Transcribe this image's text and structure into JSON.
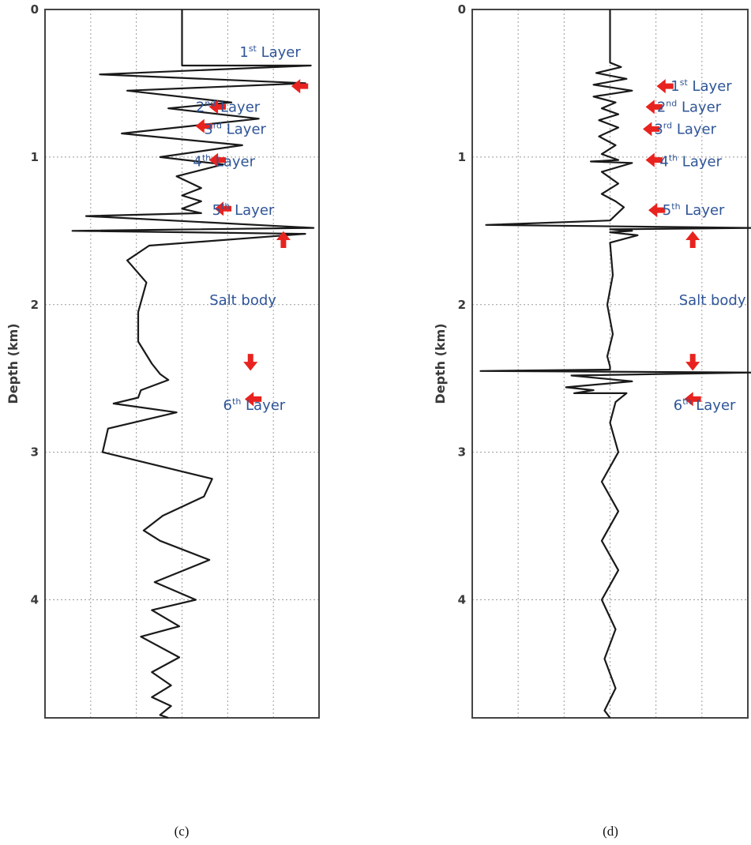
{
  "chart_data": [
    {
      "type": "line",
      "caption": "(c)",
      "ylabel": "Depth (km)",
      "ylim": [
        0,
        4.8
      ],
      "yticks": [
        0,
        1,
        2,
        3,
        4
      ],
      "grid": true,
      "annotations": [
        {
          "text": "1",
          "sup": "st",
          "rest": " Layer",
          "depth": 0.29
        },
        {
          "text": "2",
          "sup": "nd",
          "rest": " Layer",
          "depth": 0.66
        },
        {
          "text": "3",
          "sup": "rd",
          "rest": " Layer",
          "depth": 0.81
        },
        {
          "text": "4",
          "sup": "th",
          "rest": " Layer",
          "depth": 1.03
        },
        {
          "text": "5",
          "sup": "th",
          "rest": " Layer",
          "depth": 1.36
        },
        {
          "text": "Salt body",
          "sup": "",
          "rest": "",
          "depth": 1.97
        },
        {
          "text": "6",
          "sup": "th",
          "rest": " Layer",
          "depth": 2.68
        }
      ],
      "arrows": [
        {
          "dir": "left",
          "depth": 0.52,
          "x": 0.93
        },
        {
          "dir": "left",
          "depth": 0.66,
          "x": 0.63
        },
        {
          "dir": "left",
          "depth": 0.79,
          "x": 0.58
        },
        {
          "dir": "left",
          "depth": 1.02,
          "x": 0.63
        },
        {
          "dir": "left",
          "depth": 1.35,
          "x": 0.65
        },
        {
          "dir": "up",
          "depth": 1.56,
          "x": 0.87
        },
        {
          "dir": "down",
          "depth": 2.39,
          "x": 0.75
        },
        {
          "dir": "left",
          "depth": 2.64,
          "x": 0.76
        }
      ],
      "series": [
        {
          "x": [
            0.5,
            0.5,
            0.97,
            0.2,
            0.95,
            0.3,
            0.68,
            0.45,
            0.78,
            0.28,
            0.72,
            0.42,
            0.65,
            0.48,
            0.57,
            0.5,
            0.57,
            0.5,
            0.57,
            0.15,
            0.98,
            0.1,
            0.95,
            0.38,
            0.3,
            0.37,
            0.34,
            0.34,
            0.39,
            0.42,
            0.45,
            0.35,
            0.34,
            0.25,
            0.48,
            0.23,
            0.21,
            0.61,
            0.58,
            0.43,
            0.36,
            0.42,
            0.6,
            0.4,
            0.55,
            0.39,
            0.49,
            0.35,
            0.49,
            0.39,
            0.46,
            0.39,
            0.46,
            0.42,
            0.45
          ],
          "y": [
            0.0,
            0.38,
            0.38,
            0.44,
            0.5,
            0.55,
            0.63,
            0.67,
            0.74,
            0.84,
            0.92,
            1.0,
            1.05,
            1.13,
            1.21,
            1.26,
            1.3,
            1.35,
            1.38,
            1.4,
            1.48,
            1.5,
            1.52,
            1.6,
            1.7,
            1.85,
            2.05,
            2.25,
            2.4,
            2.47,
            2.51,
            2.58,
            2.63,
            2.67,
            2.73,
            2.84,
            3.0,
            3.18,
            3.3,
            3.43,
            3.53,
            3.6,
            3.73,
            3.88,
            4.0,
            4.07,
            4.18,
            4.25,
            4.39,
            4.49,
            4.58,
            4.66,
            4.72,
            4.78,
            4.8
          ]
        }
      ]
    },
    {
      "type": "line",
      "caption": "(d)",
      "ylabel": "Depth (km)",
      "ylim": [
        0,
        4.8
      ],
      "yticks": [
        0,
        1,
        2,
        3,
        4
      ],
      "grid": true,
      "annotations": [
        {
          "text": "1",
          "sup": "st",
          "rest": " Layer",
          "depth": 0.52
        },
        {
          "text": "2",
          "sup": "nd",
          "rest": " Layer",
          "depth": 0.66
        },
        {
          "text": "3",
          "sup": "rd",
          "rest": " Layer",
          "depth": 0.81
        },
        {
          "text": "4",
          "sup": "th",
          "rest": " Layer",
          "depth": 1.03
        },
        {
          "text": "5",
          "sup": "th",
          "rest": " Layer",
          "depth": 1.36
        },
        {
          "text": "Salt body",
          "sup": "",
          "rest": "",
          "depth": 1.97
        },
        {
          "text": "6",
          "sup": "th",
          "rest": " Layer",
          "depth": 2.68
        }
      ],
      "arrows": [
        {
          "dir": "left",
          "depth": 0.52,
          "x": 0.7
        },
        {
          "dir": "left",
          "depth": 0.66,
          "x": 0.66
        },
        {
          "dir": "left",
          "depth": 0.81,
          "x": 0.65
        },
        {
          "dir": "left",
          "depth": 1.02,
          "x": 0.66
        },
        {
          "dir": "left",
          "depth": 1.36,
          "x": 0.67
        },
        {
          "dir": "up",
          "depth": 1.56,
          "x": 0.8
        },
        {
          "dir": "down",
          "depth": 2.39,
          "x": 0.8
        },
        {
          "dir": "left",
          "depth": 2.64,
          "x": 0.8
        }
      ],
      "series": [
        {
          "x": [
            0.5,
            0.5,
            0.54,
            0.45,
            0.56,
            0.44,
            0.58,
            0.44,
            0.52,
            0.47,
            0.53,
            0.46,
            0.53,
            0.46,
            0.52,
            0.47,
            0.53,
            0.43,
            0.58,
            0.47,
            0.53,
            0.47,
            0.52,
            0.55,
            0.5,
            0.05,
            1.02,
            0.5,
            0.58,
            0.5,
            0.6,
            0.5,
            0.51,
            0.49,
            0.51,
            0.49,
            0.5,
            0.5,
            0.03,
            1.02,
            0.36,
            0.58,
            0.34,
            0.44,
            0.37,
            0.56,
            0.52,
            0.5,
            0.53,
            0.47,
            0.53,
            0.47,
            0.53,
            0.47,
            0.52,
            0.48,
            0.52,
            0.48,
            0.5
          ],
          "y": [
            0.0,
            0.36,
            0.39,
            0.43,
            0.47,
            0.51,
            0.55,
            0.59,
            0.63,
            0.67,
            0.71,
            0.75,
            0.8,
            0.86,
            0.92,
            0.98,
            1.02,
            1.03,
            1.04,
            1.1,
            1.18,
            1.25,
            1.3,
            1.34,
            1.43,
            1.46,
            1.48,
            1.49,
            1.5,
            1.51,
            1.53,
            1.58,
            1.8,
            2.0,
            2.2,
            2.35,
            2.42,
            2.44,
            2.45,
            2.46,
            2.48,
            2.52,
            2.56,
            2.58,
            2.6,
            2.6,
            2.66,
            2.8,
            3.0,
            3.2,
            3.4,
            3.6,
            3.8,
            4.0,
            4.2,
            4.4,
            4.6,
            4.75,
            4.8
          ]
        }
      ]
    }
  ]
}
